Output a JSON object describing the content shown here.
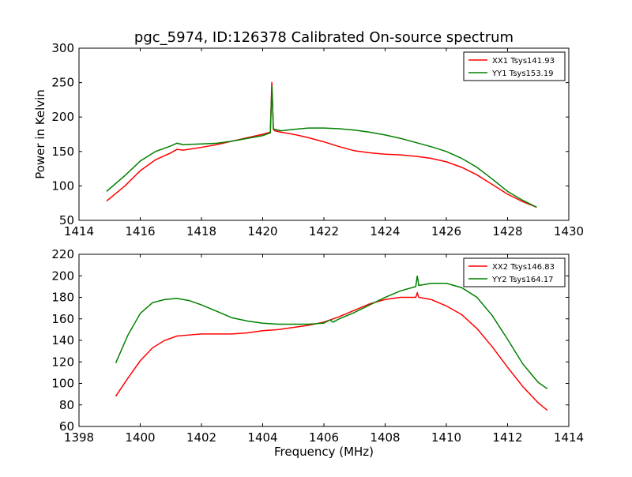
{
  "chart_data": [
    {
      "type": "line",
      "title": "pgc_5974, ID:126378 Calibrated On-source spectrum",
      "xlabel": "",
      "ylabel": "Power in Kelvin",
      "xlim": [
        1414,
        1430
      ],
      "ylim": [
        50,
        300
      ],
      "xticks": [
        1414,
        1416,
        1418,
        1420,
        1422,
        1424,
        1426,
        1428,
        1430
      ],
      "yticks": [
        50,
        100,
        150,
        200,
        250,
        300
      ],
      "legend": "top-right",
      "grid": false,
      "series": [
        {
          "name": "XX1 Tsys141.93",
          "color": "#ff0000",
          "x": [
            1414.9,
            1415.5,
            1416.0,
            1416.5,
            1417.0,
            1417.2,
            1417.4,
            1418.0,
            1418.5,
            1419.0,
            1419.5,
            1420.0,
            1420.25,
            1420.3,
            1420.35,
            1420.4,
            1420.6,
            1421.0,
            1421.5,
            1422.0,
            1422.5,
            1423.0,
            1423.5,
            1424.0,
            1424.5,
            1425.0,
            1425.5,
            1426.0,
            1426.5,
            1427.0,
            1427.5,
            1428.0,
            1428.5,
            1428.95
          ],
          "y": [
            78,
            100,
            122,
            138,
            148,
            153,
            152,
            156,
            160,
            165,
            170,
            175,
            178,
            251,
            182,
            180,
            178,
            175,
            170,
            164,
            157,
            151,
            148,
            146,
            145,
            143,
            140,
            135,
            127,
            116,
            102,
            88,
            77,
            69
          ]
        },
        {
          "name": "YY1 Tsys153.19",
          "color": "#008000",
          "x": [
            1414.9,
            1415.5,
            1416.0,
            1416.5,
            1417.0,
            1417.2,
            1417.4,
            1418.0,
            1418.5,
            1419.0,
            1419.5,
            1420.0,
            1420.25,
            1420.3,
            1420.35,
            1420.4,
            1420.6,
            1421.0,
            1421.5,
            1422.0,
            1422.5,
            1423.0,
            1423.5,
            1424.0,
            1424.5,
            1425.0,
            1425.5,
            1426.0,
            1426.5,
            1427.0,
            1427.5,
            1428.0,
            1428.5,
            1428.95
          ],
          "y": [
            92,
            115,
            136,
            150,
            158,
            162,
            160,
            161,
            162,
            165,
            169,
            173,
            177,
            245,
            183,
            182,
            180,
            182,
            184,
            184,
            183,
            181,
            178,
            174,
            169,
            163,
            157,
            150,
            140,
            127,
            110,
            92,
            79,
            69
          ]
        }
      ]
    },
    {
      "type": "line",
      "title": "",
      "xlabel": "Frequency (MHz)",
      "ylabel": "",
      "xlim": [
        1398,
        1414
      ],
      "ylim": [
        60,
        220
      ],
      "xticks": [
        1398,
        1400,
        1402,
        1404,
        1406,
        1408,
        1410,
        1412,
        1414
      ],
      "yticks": [
        60,
        80,
        100,
        120,
        140,
        160,
        180,
        200,
        220
      ],
      "legend": "top-right",
      "grid": false,
      "series": [
        {
          "name": "XX2 Tsys146.83",
          "color": "#ff0000",
          "x": [
            1399.2,
            1399.6,
            1400.0,
            1400.4,
            1400.8,
            1401.2,
            1401.6,
            1402.0,
            1402.5,
            1403.0,
            1403.5,
            1404.0,
            1404.5,
            1405.0,
            1405.5,
            1406.0,
            1406.5,
            1407.0,
            1407.5,
            1408.0,
            1408.5,
            1409.0,
            1409.05,
            1409.1,
            1409.5,
            1410.0,
            1410.5,
            1411.0,
            1411.5,
            1412.0,
            1412.5,
            1413.0,
            1413.3
          ],
          "y": [
            88,
            105,
            121,
            133,
            140,
            144,
            145,
            146,
            146,
            146,
            147,
            149,
            150,
            152,
            154,
            157,
            162,
            168,
            174,
            178,
            180,
            180,
            184,
            180,
            178,
            172,
            164,
            151,
            134,
            115,
            97,
            82,
            75
          ]
        },
        {
          "name": "YY2 Tsys164.17",
          "color": "#008000",
          "x": [
            1399.2,
            1399.6,
            1400.0,
            1400.4,
            1400.8,
            1401.2,
            1401.6,
            1402.0,
            1402.5,
            1403.0,
            1403.5,
            1404.0,
            1404.5,
            1405.0,
            1405.5,
            1406.0,
            1406.2,
            1406.3,
            1406.5,
            1407.0,
            1407.5,
            1408.0,
            1408.5,
            1409.0,
            1409.05,
            1409.1,
            1409.5,
            1410.0,
            1410.5,
            1411.0,
            1411.5,
            1412.0,
            1412.5,
            1413.0,
            1413.3
          ],
          "y": [
            119,
            145,
            165,
            175,
            178,
            179,
            177,
            173,
            167,
            161,
            158,
            156,
            155,
            155,
            155,
            156,
            159,
            157,
            160,
            166,
            173,
            180,
            186,
            190,
            200,
            191,
            193,
            193,
            189,
            180,
            163,
            141,
            118,
            101,
            95
          ]
        }
      ]
    }
  ]
}
